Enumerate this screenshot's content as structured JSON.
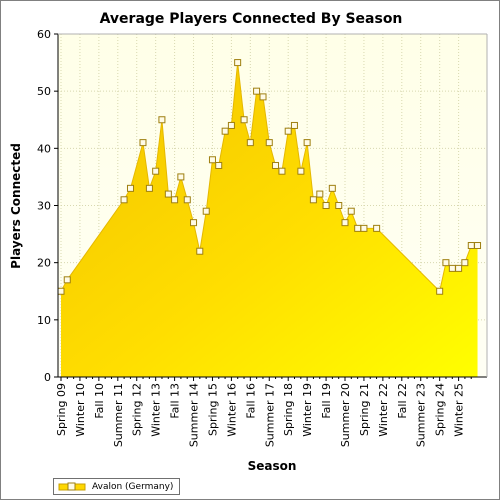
{
  "chart_data": {
    "type": "area",
    "title": "Average Players Connected By Season",
    "xlabel": "Season",
    "ylabel": "Players Connected",
    "ylim": [
      0,
      60
    ],
    "yticks": [
      0,
      10,
      20,
      30,
      40,
      50,
      60
    ],
    "grid": true,
    "legend_position": "bottom-left",
    "colors": {
      "fill": "#ffd700",
      "line": "#e5b800",
      "marker_face": "#fffbe6",
      "marker_edge": "#9e7f10",
      "background_top": "#ffffe8",
      "background_bottom": "#fffff4"
    },
    "categories": [
      "Spring 09",
      "Winter 10",
      "Fall 10",
      "Summer 11",
      "Spring 12",
      "Winter 13",
      "Fall 13",
      "Summer 14",
      "Spring 15",
      "Winter 16",
      "Fall 16",
      "Summer 17",
      "Spring 18",
      "Winter 19",
      "Fall 19",
      "Summer 20",
      "Spring 21",
      "Winter 22",
      "Fall 22",
      "Summer 23",
      "Spring 24",
      "Winter 25"
    ],
    "series": [
      {
        "name": "Avalon (Germany)",
        "points": [
          [
            0,
            15
          ],
          [
            0.33,
            17
          ],
          [
            3.33,
            31
          ],
          [
            3.67,
            33
          ],
          [
            4.33,
            41
          ],
          [
            4.67,
            33
          ],
          [
            5,
            36
          ],
          [
            5.33,
            45
          ],
          [
            5.67,
            32
          ],
          [
            6,
            31
          ],
          [
            6.33,
            35
          ],
          [
            6.67,
            31
          ],
          [
            7,
            27
          ],
          [
            7.33,
            22
          ],
          [
            7.67,
            29
          ],
          [
            8,
            38
          ],
          [
            8.33,
            37
          ],
          [
            8.67,
            43
          ],
          [
            9,
            44
          ],
          [
            9.33,
            55
          ],
          [
            9.67,
            45
          ],
          [
            10,
            41
          ],
          [
            10.33,
            50
          ],
          [
            10.67,
            49
          ],
          [
            11,
            41
          ],
          [
            11.33,
            37
          ],
          [
            11.67,
            36
          ],
          [
            12,
            43
          ],
          [
            12.33,
            44
          ],
          [
            12.67,
            36
          ],
          [
            13,
            41
          ],
          [
            13.33,
            31
          ],
          [
            13.67,
            32
          ],
          [
            14,
            30
          ],
          [
            14.33,
            33
          ],
          [
            14.67,
            30
          ],
          [
            15,
            27
          ],
          [
            15.33,
            29
          ],
          [
            15.67,
            26
          ],
          [
            16,
            26
          ],
          [
            16.67,
            26
          ],
          [
            20,
            15
          ],
          [
            20.33,
            20
          ],
          [
            20.67,
            19
          ],
          [
            21,
            19
          ],
          [
            21.33,
            20
          ],
          [
            21.67,
            23
          ],
          [
            22,
            23
          ]
        ]
      }
    ]
  }
}
